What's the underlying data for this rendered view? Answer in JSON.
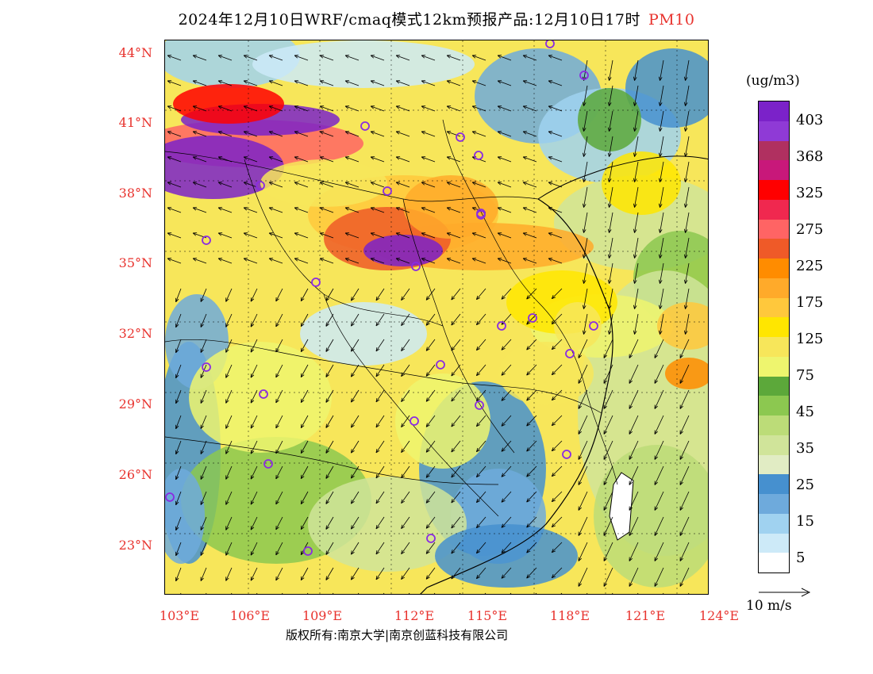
{
  "title": {
    "main": "2024年12月10日WRF/cmaq模式12km预报产品:12月10日17时",
    "pollutant": "PM10"
  },
  "lat_labels": [
    "44°N",
    "41°N",
    "38°N",
    "35°N",
    "32°N",
    "29°N",
    "26°N",
    "23°N"
  ],
  "lon_labels": [
    "103°E",
    "106°E",
    "109°E",
    "112°E",
    "115°E",
    "118°E",
    "121°E",
    "124°E"
  ],
  "colorbar": {
    "unit": "(ug/m3)",
    "colors": [
      "#7b22c9",
      "#8f3ad6",
      "#b03060",
      "#c8187a",
      "#ff0000",
      "#f0284f",
      "#ff6464",
      "#ef5a28",
      "#ff8c00",
      "#ffaa2a",
      "#ffc83c",
      "#ffe600",
      "#f7e65a",
      "#eef56e",
      "#5ca83a",
      "#8cc850",
      "#bcdc78",
      "#d0e49a",
      "#e1ecc4",
      "#4690cf",
      "#6eaadc",
      "#a0d2f0",
      "#cdeaf8",
      "#ffffff"
    ],
    "labels": [
      "403",
      "368",
      "325",
      "275",
      "225",
      "175",
      "125",
      "75",
      "45",
      "35",
      "25",
      "15",
      "5"
    ]
  },
  "wind_reference": "10 m/s",
  "credit": "版权所有:南京大学|南京创蓝科技有限公司",
  "colors": {
    "axis_label": "#e8332e",
    "title_accent": "#e8332e"
  }
}
